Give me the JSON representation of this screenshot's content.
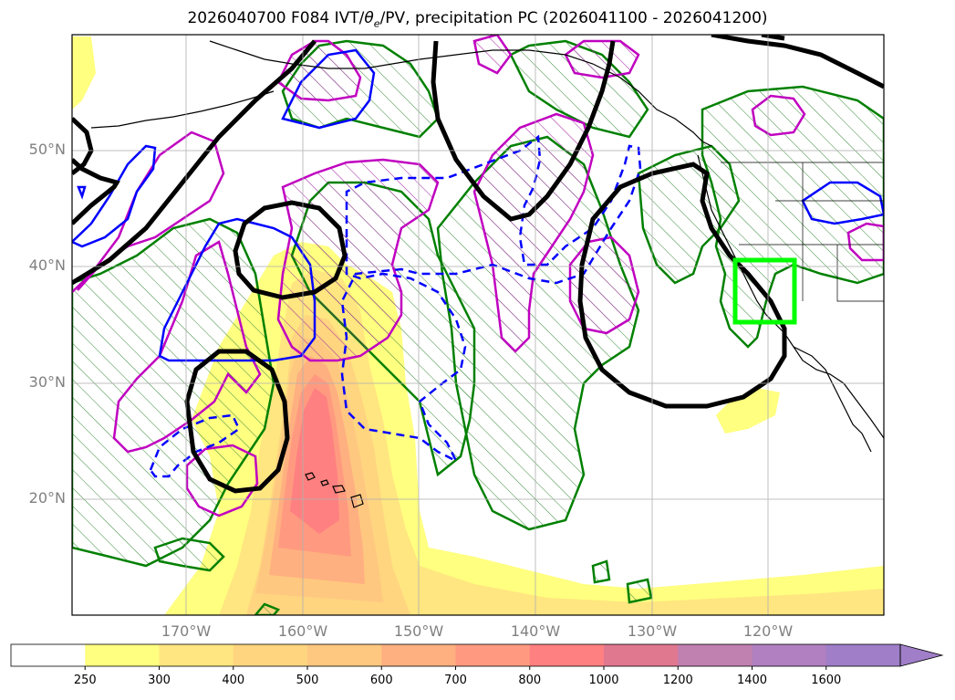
{
  "title": {
    "prefix": "2026040700 F084 IVT/",
    "theta_symbol": "θ",
    "theta_sub": "e",
    "suffix": "/PV, precipitation PC (2026041100 - 2026041200)"
  },
  "map": {
    "lat_labels": [
      {
        "lat": 50,
        "text": "50°N"
      },
      {
        "lat": 40,
        "text": "40°N"
      },
      {
        "lat": 30,
        "text": "30°N"
      },
      {
        "lat": 20,
        "text": "20°N"
      }
    ],
    "lon_labels": [
      {
        "lon": -170,
        "text": "170°W"
      },
      {
        "lon": -160,
        "text": "160°W"
      },
      {
        "lon": -150,
        "text": "150°W"
      },
      {
        "lon": -140,
        "text": "140°W"
      },
      {
        "lon": -130,
        "text": "130°W"
      },
      {
        "lon": -120,
        "text": "120°W"
      }
    ],
    "highlight_box": {
      "color": "#00ff00"
    },
    "contour_colors": {
      "theta_e_low": "#000000",
      "pv_blue": "#0000ff",
      "pv_magenta": "#c000c0",
      "precip_green": "#008000"
    }
  },
  "colorbar": {
    "levels": [
      "250",
      "300",
      "400",
      "500",
      "600",
      "700",
      "800",
      "1000",
      "1200",
      "1400",
      "1600"
    ],
    "colors": [
      "#ffffff",
      "#ffff80",
      "#ffe680",
      "#ffd580",
      "#ffc880",
      "#ffb080",
      "#ff9a80",
      "#ff8080",
      "#e07890",
      "#c080b0",
      "#b080c0",
      "#a07ec8"
    ]
  }
}
